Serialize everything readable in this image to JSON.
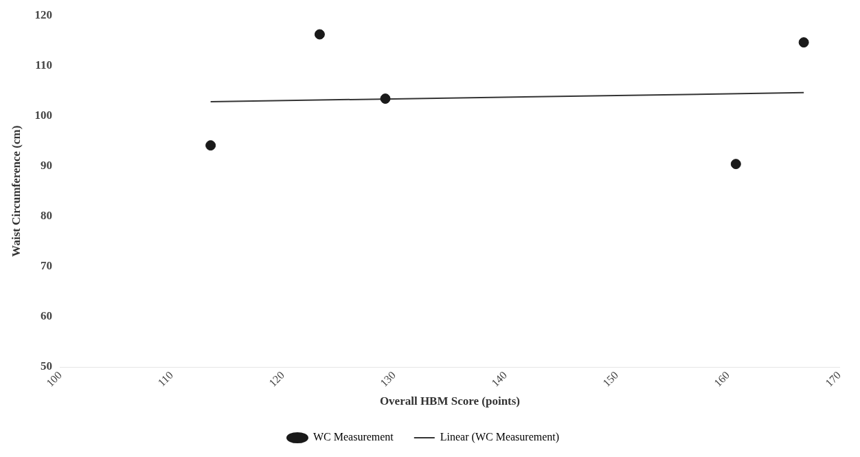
{
  "chart_data": {
    "type": "scatter",
    "xlabel": "Overall HBM Score (points)",
    "ylabel": "Waist Circumference (cm)",
    "series": [
      {
        "name": "WC Measurement",
        "color": "#1a1a1a",
        "x": [
          113.5,
          123.3,
          129.2,
          160.7,
          166.8
        ],
        "values": [
          94.1,
          116.2,
          103.4,
          90.4,
          114.6
        ],
        "marker": "circle"
      },
      {
        "name": "Linear (WC Measurement)",
        "type": "line",
        "color": "#333333",
        "x": [
          113.5,
          166.8
        ],
        "values": [
          102.8,
          104.6
        ],
        "marker": "none",
        "line_style": "solid"
      }
    ],
    "xlim": [
      100,
      170
    ],
    "xticks": [
      100,
      110,
      120,
      130,
      140,
      150,
      160,
      170
    ],
    "ylim": [
      50,
      120
    ],
    "yticks": [
      50,
      60,
      70,
      80,
      90,
      100,
      110,
      120
    ],
    "grid": false,
    "legend": "bottom"
  }
}
